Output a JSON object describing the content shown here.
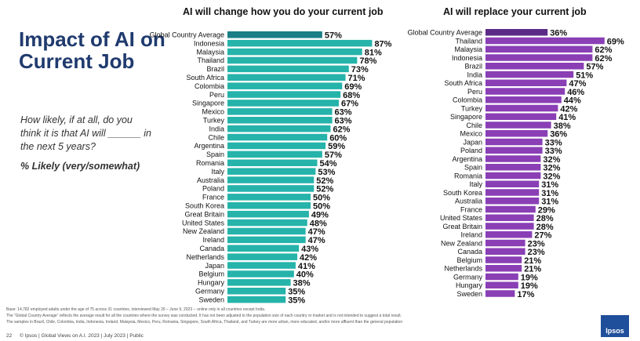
{
  "page": {
    "title": "Impact of AI on Current Job",
    "question": "How likely, if at all, do you think it is that AI will ______ in the next 5 years?",
    "likely_label": "% Likely (very/somewhat)"
  },
  "chart_data": [
    {
      "type": "bar",
      "orientation": "horizontal",
      "title": "AI will change how you do your current job",
      "highlight_color": "#1a7f86",
      "bar_color": "#25b3aa",
      "categories": [
        "Global Country Average",
        "Indonesia",
        "Malaysia",
        "Thailand",
        "Brazil",
        "South Africa",
        "Colombia",
        "Peru",
        "Singapore",
        "Mexico",
        "Turkey",
        "India",
        "Chile",
        "Argentina",
        "Spain",
        "Romania",
        "Italy",
        "Australia",
        "Poland",
        "France",
        "South Korea",
        "Great Britain",
        "United States",
        "New Zealand",
        "Ireland",
        "Canada",
        "Netherlands",
        "Japan",
        "Belgium",
        "Hungary",
        "Germany",
        "Sweden"
      ],
      "values": [
        57,
        87,
        81,
        78,
        73,
        71,
        69,
        68,
        67,
        63,
        63,
        62,
        60,
        59,
        57,
        54,
        53,
        52,
        52,
        50,
        50,
        49,
        48,
        47,
        47,
        43,
        42,
        41,
        40,
        38,
        35,
        35
      ],
      "labels": [
        "57%",
        "87%",
        "81%",
        "78%",
        "73%",
        "71%",
        "69%",
        "68%",
        "67%",
        "63%",
        "63%",
        "62%",
        "60%",
        "59%",
        "57%",
        "54%",
        "53%",
        "52%",
        "52%",
        "50%",
        "50%",
        "49%",
        "48%",
        "47%",
        "47%",
        "43%",
        "42%",
        "41%",
        "40%",
        "38%",
        "35%",
        "35%"
      ]
    },
    {
      "type": "bar",
      "orientation": "horizontal",
      "title": "AI will replace your current job",
      "highlight_color": "#5b2a86",
      "bar_color": "#8a3fb5",
      "categories": [
        "Global Country Average",
        "Thailand",
        "Malaysia",
        "Indonesia",
        "Brazil",
        "India",
        "South Africa",
        "Peru",
        "Colombia",
        "Turkey",
        "Singapore",
        "Chile",
        "Mexico",
        "Japan",
        "Poland",
        "Argentina",
        "Spain",
        "Romania",
        "Italy",
        "South Korea",
        "Australia",
        "France",
        "United States",
        "Great Britain",
        "Ireland",
        "New Zealand",
        "Canada",
        "Belgium",
        "Netherlands",
        "Germany",
        "Hungary",
        "Sweden"
      ],
      "values": [
        36,
        69,
        62,
        62,
        57,
        51,
        47,
        46,
        44,
        42,
        41,
        38,
        36,
        33,
        33,
        32,
        32,
        32,
        31,
        31,
        31,
        29,
        28,
        28,
        27,
        23,
        23,
        21,
        21,
        19,
        19,
        17
      ],
      "labels": [
        "36%",
        "69%",
        "62%",
        "62%",
        "57%",
        "51%",
        "47%",
        "46%",
        "44%",
        "42%",
        "41%",
        "38%",
        "36%",
        "33%",
        "33%",
        "32%",
        "32%",
        "32%",
        "31%",
        "31%",
        "31%",
        "29%",
        "28%",
        "28%",
        "27%",
        "23%",
        "23%",
        "21%",
        "21%",
        "19%",
        "19%",
        "17%"
      ]
    }
  ],
  "footer": {
    "note1": "Base: 14,782 employed adults under the age of 75 across 31 countries, interviewed May 26 – June 9, 2023 -- online only in all countries except India.",
    "note2": "The “Global Country Average” reflects the average result for all the countries where the survey was conducted. It has not been adjusted to the population size of each country or market and is not intended to suggest a total result.",
    "note3": "The samples in Brazil, Chile, Colombia, India, Indonesia, Ireland, Malaysia, Mexico, Peru, Romania, Singapore, South Africa, Thailand, and Turkey are more urban, more educated, and/or more affluent than the general population",
    "page_number": "22",
    "source": "© Ipsos | Global Views on A.I. 2023 | July 2023 | Public",
    "logo_text": "Ipsos"
  }
}
